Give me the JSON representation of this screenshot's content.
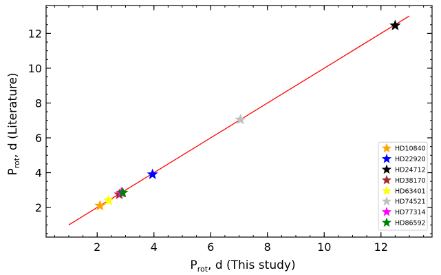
{
  "chart_data": {
    "type": "scatter",
    "xlabel": {
      "main": "P",
      "sub": "rot",
      "rest": ", d (This study)"
    },
    "ylabel": {
      "main": "P",
      "sub": "rot",
      "rest": ", d (Literature)"
    },
    "xlim": [
      0.2,
      13.8
    ],
    "ylim": [
      0.3,
      13.6
    ],
    "xticks": [
      2,
      4,
      6,
      8,
      10,
      12
    ],
    "yticks": [
      2,
      4,
      6,
      8,
      10,
      12
    ],
    "x_minor_step": 0.5,
    "y_minor_step": 0.5,
    "grid": false,
    "legend_position": "bottom-right",
    "reference_line": {
      "x": [
        1,
        13
      ],
      "y": [
        1,
        13
      ],
      "color": "#ff0000"
    },
    "series": [
      {
        "name": "HD10840",
        "color": "#ffa500",
        "x": [
          2.1
        ],
        "y": [
          2.1
        ]
      },
      {
        "name": "HD22920",
        "color": "#0000ff",
        "x": [
          3.95
        ],
        "y": [
          3.9
        ]
      },
      {
        "name": "HD24712",
        "color": "#000000",
        "x": [
          12.5
        ],
        "y": [
          12.45
        ]
      },
      {
        "name": "HD38170",
        "color": "#a52a2a",
        "x": [
          2.78
        ],
        "y": [
          2.75
        ]
      },
      {
        "name": "HD63401",
        "color": "#ffff00",
        "x": [
          2.4
        ],
        "y": [
          2.4
        ]
      },
      {
        "name": "HD74521",
        "color": "#c0c0c0",
        "x": [
          7.05
        ],
        "y": [
          7.05
        ]
      },
      {
        "name": "HD77314",
        "color": "#ff00ff",
        "x": [
          2.85
        ],
        "y": [
          2.85
        ]
      },
      {
        "name": "HD86592",
        "color": "#008000",
        "x": [
          2.9
        ],
        "y": [
          2.85
        ]
      }
    ]
  }
}
